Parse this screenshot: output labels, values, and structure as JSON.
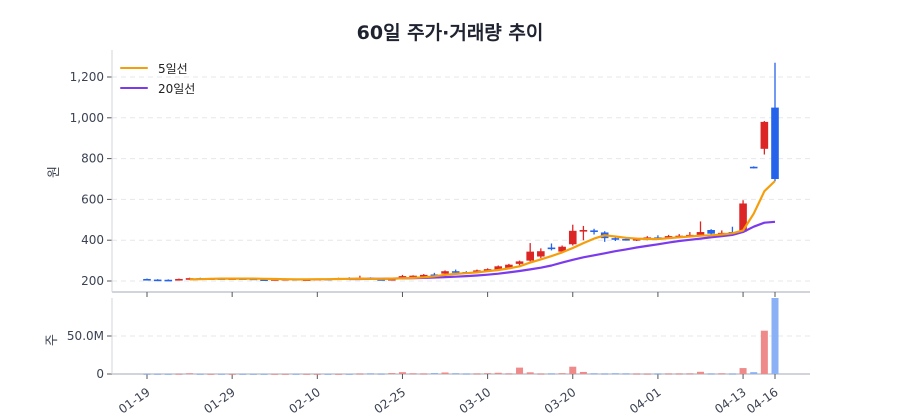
{
  "title": "60일 주가·거래량 추이",
  "legend": [
    {
      "label": "5일선",
      "color": "#f59e0b"
    },
    {
      "label": "20일선",
      "color": "#7c3aed"
    }
  ],
  "colors": {
    "up": "#dc2626",
    "down": "#2563eb",
    "vol_up": "#ef8a8a",
    "vol_down": "#8ab0f5",
    "grid": "#e5e7eb",
    "axis": "#d1d5db"
  },
  "price_axis": {
    "label": "원",
    "ticks": [
      "200",
      "400",
      "600",
      "800",
      "1,000",
      "1,200"
    ],
    "values": [
      200,
      400,
      600,
      800,
      1000,
      1200
    ]
  },
  "volume_axis": {
    "label": "주",
    "ticks": [
      "0",
      "50.0M"
    ],
    "values": [
      0,
      50000000
    ]
  },
  "x_ticks": [
    {
      "label": "01-19",
      "index": 0
    },
    {
      "label": "01-29",
      "index": 8
    },
    {
      "label": "02-10",
      "index": 16
    },
    {
      "label": "02-25",
      "index": 24
    },
    {
      "label": "03-10",
      "index": 32
    },
    {
      "label": "03-20",
      "index": 40
    },
    {
      "label": "04-01",
      "index": 48
    },
    {
      "label": "04-13",
      "index": 56
    },
    {
      "label": "04-16",
      "index": 59
    }
  ],
  "chart_data": {
    "type": "candlestick+bar",
    "title": "60일 주가·거래량 추이",
    "xlabel": "",
    "ylabel": "원",
    "ylabel_volume": "주",
    "ylim": [
      170,
      1290
    ],
    "ylim_volume": [
      0,
      100000000
    ],
    "grid": true,
    "legend_position": "upper left",
    "legend": [
      "5일선",
      "20일선"
    ],
    "x_tick_labels": [
      "01-19",
      "01-29",
      "02-10",
      "02-25",
      "03-10",
      "03-20",
      "04-01",
      "04-13",
      "04-16"
    ],
    "ohlc": [
      [
        210,
        212,
        206,
        207
      ],
      [
        207,
        209,
        205,
        206
      ],
      [
        206,
        208,
        204,
        205
      ],
      [
        204,
        212,
        203,
        210
      ],
      [
        206,
        216,
        205,
        214
      ],
      [
        214,
        216,
        210,
        212
      ],
      [
        212,
        215,
        209,
        213
      ],
      [
        213,
        216,
        210,
        211
      ],
      [
        211,
        214,
        208,
        213
      ],
      [
        213,
        216,
        210,
        212
      ],
      [
        212,
        214,
        207,
        208
      ],
      [
        208,
        211,
        205,
        207
      ],
      [
        207,
        210,
        204,
        209
      ],
      [
        209,
        213,
        206,
        210
      ],
      [
        210,
        212,
        205,
        207
      ],
      [
        207,
        209,
        204,
        208
      ],
      [
        208,
        212,
        205,
        211
      ],
      [
        211,
        213,
        207,
        209
      ],
      [
        209,
        216,
        207,
        214
      ],
      [
        214,
        218,
        210,
        212
      ],
      [
        212,
        226,
        210,
        216
      ],
      [
        216,
        218,
        206,
        209
      ],
      [
        209,
        213,
        205,
        207
      ],
      [
        207,
        212,
        204,
        210
      ],
      [
        210,
        230,
        208,
        224
      ],
      [
        218,
        228,
        214,
        226
      ],
      [
        224,
        234,
        220,
        230
      ],
      [
        232,
        240,
        226,
        228
      ],
      [
        236,
        252,
        232,
        248
      ],
      [
        248,
        256,
        240,
        244
      ],
      [
        244,
        248,
        236,
        240
      ],
      [
        248,
        256,
        244,
        252
      ],
      [
        252,
        262,
        246,
        258
      ],
      [
        256,
        276,
        250,
        272
      ],
      [
        262,
        284,
        258,
        280
      ],
      [
        284,
        300,
        276,
        296
      ],
      [
        300,
        386,
        296,
        344
      ],
      [
        320,
        360,
        312,
        346
      ],
      [
        364,
        384,
        350,
        362
      ],
      [
        344,
        374,
        338,
        368
      ],
      [
        380,
        476,
        374,
        446
      ],
      [
        448,
        470,
        400,
        450
      ],
      [
        448,
        456,
        428,
        442
      ],
      [
        438,
        444,
        392,
        410
      ],
      [
        410,
        420,
        396,
        404
      ],
      [
        406,
        412,
        398,
        400
      ],
      [
        400,
        412,
        396,
        406
      ],
      [
        406,
        420,
        400,
        414
      ],
      [
        414,
        424,
        404,
        410
      ],
      [
        410,
        426,
        406,
        420
      ],
      [
        418,
        430,
        412,
        422
      ],
      [
        420,
        440,
        414,
        426
      ],
      [
        426,
        492,
        420,
        440
      ],
      [
        450,
        454,
        424,
        432
      ],
      [
        432,
        448,
        420,
        436
      ],
      [
        440,
        466,
        432,
        438
      ],
      [
        442,
        596,
        436,
        580
      ],
      [
        760,
        762,
        752,
        756
      ],
      [
        848,
        984,
        820,
        980
      ],
      [
        1050,
        1270,
        690,
        700
      ]
    ],
    "volume": [
      200000,
      150000,
      100000,
      250000,
      900000,
      150000,
      100000,
      120000,
      100000,
      90000,
      80000,
      70000,
      90000,
      60000,
      100000,
      80000,
      90000,
      70000,
      80000,
      60000,
      500000,
      700000,
      400000,
      1200000,
      2400000,
      800000,
      600000,
      1200000,
      2000000,
      900000,
      500000,
      600000,
      1000000,
      1600000,
      700000,
      8400000,
      2200000,
      500000,
      700000,
      1000000,
      9600000,
      2700000,
      800000,
      600000,
      900000,
      700000,
      500000,
      400000,
      500000,
      600000,
      600000,
      700000,
      2900000,
      600000,
      800000,
      500000,
      7800000,
      2400000,
      57000000,
      100000000
    ],
    "ma5": [
      null,
      null,
      null,
      null,
      208,
      209,
      211,
      212,
      212,
      212,
      212,
      211,
      210,
      209,
      208,
      208,
      209,
      209,
      210,
      211,
      212,
      211,
      211,
      212,
      213,
      215,
      218,
      223,
      230,
      235,
      238,
      242,
      248,
      254,
      262,
      272,
      290,
      306,
      322,
      340,
      362,
      386,
      408,
      424,
      418,
      412,
      408,
      406,
      406,
      410,
      414,
      418,
      422,
      424,
      428,
      434,
      448,
      530,
      640,
      690
    ],
    "ma20": [
      null,
      null,
      null,
      null,
      null,
      null,
      null,
      null,
      null,
      null,
      null,
      null,
      null,
      null,
      null,
      null,
      null,
      null,
      null,
      210,
      210,
      211,
      211,
      212,
      213,
      214,
      215,
      217,
      219,
      221,
      224,
      227,
      231,
      236,
      242,
      249,
      257,
      265,
      276,
      290,
      304,
      316,
      326,
      336,
      346,
      355,
      364,
      372,
      380,
      388,
      396,
      402,
      408,
      414,
      420,
      426,
      440,
      466,
      486,
      490
    ]
  }
}
